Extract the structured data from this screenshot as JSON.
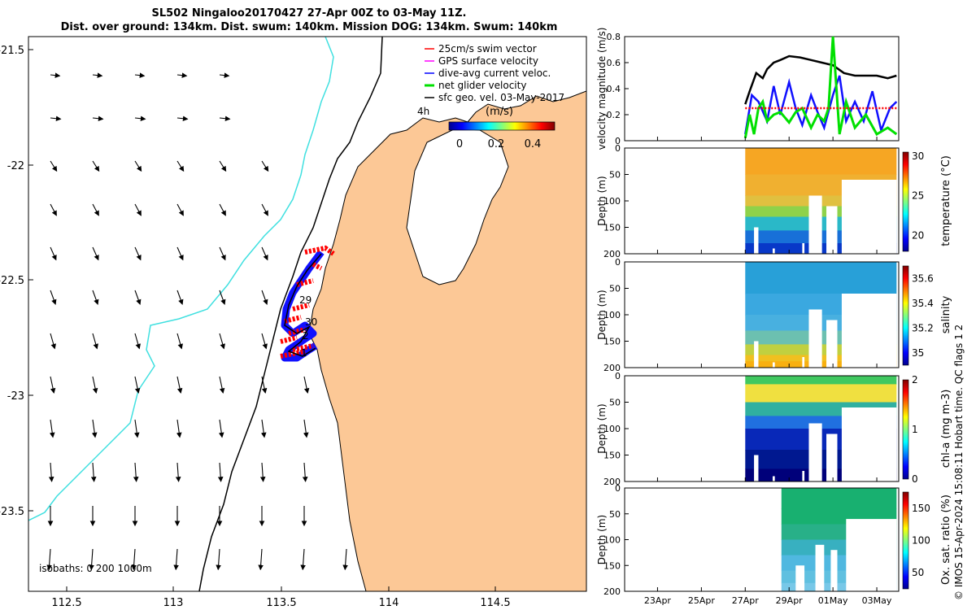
{
  "title_line1": "SL502 Ningaloo20170427 27-Apr 00Z to 03-May 11Z.",
  "title_line2": "Dist. over ground: 134km. Dist. swum: 140km. Mission DOG: 134km. Swum: 140km",
  "footer": "© IMOS 15-Apr-2024 15:08:11 Hobart time. QC flags 1  2",
  "map": {
    "lon_ticks": [
      "112.5",
      "113",
      "113.5",
      "114",
      "114.5"
    ],
    "lat_ticks": [
      "-21.5",
      "-22",
      "-22.5",
      "-23",
      "-23.5"
    ],
    "legend": [
      "25cm/s swim vector",
      "GPS surface velocity",
      "dive-avg current veloc.",
      "net glider velocity",
      "sfc geo. vel. 03-May-2017"
    ],
    "interval_label": "4h",
    "colorbar_label": "(m/s)",
    "colorbar_ticks": [
      "0",
      "0.2",
      "0.4"
    ],
    "day_labels": [
      "29",
      "30",
      "2",
      "1"
    ],
    "isobaths": "isobaths: 0   200  1000m",
    "colors": {
      "land": "#fcc896",
      "isobath200": "#000000",
      "isobath1000": "#40e0e0",
      "swim": "#ff0000",
      "track": "#1010ff"
    }
  },
  "chart_data": [
    {
      "type": "line",
      "ylabel": "velocity magnitude (m/s)",
      "ylim": [
        0,
        0.8
      ],
      "y_ticks": [
        "0",
        "0.2",
        "0.4",
        "0.6",
        "0.8"
      ],
      "series": [
        {
          "color": "#000000",
          "x": [
            27.0,
            27.2,
            27.5,
            27.8,
            28.0,
            28.3,
            28.6,
            29.0,
            29.5,
            30.0,
            30.5,
            31.0,
            31.5,
            32.0,
            32.5,
            33.0,
            33.5,
            33.9
          ],
          "y": [
            0.28,
            0.38,
            0.52,
            0.48,
            0.55,
            0.6,
            0.62,
            0.65,
            0.64,
            0.62,
            0.6,
            0.58,
            0.52,
            0.5,
            0.5,
            0.5,
            0.48,
            0.5
          ]
        },
        {
          "color": "#1010ff",
          "x": [
            27.0,
            27.3,
            27.6,
            28.0,
            28.3,
            28.6,
            29.0,
            29.3,
            29.6,
            30.0,
            30.3,
            30.6,
            31.0,
            31.3,
            31.6,
            32.0,
            32.4,
            32.8,
            33.2,
            33.6,
            33.9
          ],
          "y": [
            0.05,
            0.35,
            0.3,
            0.15,
            0.42,
            0.2,
            0.45,
            0.25,
            0.12,
            0.35,
            0.22,
            0.1,
            0.35,
            0.5,
            0.15,
            0.3,
            0.15,
            0.38,
            0.08,
            0.25,
            0.3
          ]
        },
        {
          "color": "#00e000",
          "x": [
            27.0,
            27.2,
            27.4,
            27.6,
            27.8,
            28.0,
            28.3,
            28.6,
            29.0,
            29.3,
            29.6,
            30.0,
            30.3,
            30.6,
            30.8,
            31.0,
            31.3,
            31.6,
            32.0,
            32.5,
            33.0,
            33.5,
            33.9
          ],
          "y": [
            0.02,
            0.2,
            0.05,
            0.25,
            0.3,
            0.15,
            0.2,
            0.22,
            0.14,
            0.22,
            0.25,
            0.1,
            0.2,
            0.15,
            0.25,
            0.8,
            0.05,
            0.3,
            0.1,
            0.2,
            0.05,
            0.1,
            0.05
          ]
        },
        {
          "color": "#ff0000",
          "x": [
            27.0,
            33.9
          ],
          "y": [
            0.25,
            0.25
          ]
        }
      ]
    },
    {
      "type": "heatmap",
      "ylabel": "Depth (m)",
      "ylim": [
        200,
        0
      ],
      "y_ticks": [
        "0",
        "50",
        "100",
        "150",
        "200"
      ],
      "colorbar_label": "temperature (°C)",
      "colorbar_ticks": [
        "20",
        "25",
        "30"
      ],
      "crange": [
        18,
        30.5
      ]
    },
    {
      "type": "heatmap",
      "ylabel": "Depth (m)",
      "ylim": [
        200,
        0
      ],
      "y_ticks": [
        "0",
        "50",
        "100",
        "150",
        "200"
      ],
      "colorbar_label": "salinity",
      "colorbar_ticks": [
        "35",
        "35.2",
        "35.4",
        "35.6"
      ],
      "crange": [
        34.9,
        35.7
      ]
    },
    {
      "type": "heatmap",
      "ylabel": "Depth (m)",
      "ylim": [
        200,
        0
      ],
      "y_ticks": [
        "0",
        "50",
        "100",
        "150",
        "200"
      ],
      "colorbar_label": "chl-a (mg m-3)",
      "colorbar_ticks": [
        "0",
        "1",
        "2"
      ],
      "crange": [
        0,
        2
      ]
    },
    {
      "type": "heatmap",
      "ylabel": "Depth (m)",
      "ylim": [
        200,
        0
      ],
      "y_ticks": [
        "0",
        "50",
        "100",
        "150",
        "200"
      ],
      "colorbar_label": "Ox. sat. ratio (%)",
      "colorbar_ticks": [
        "50",
        "100",
        "150"
      ],
      "crange": [
        25,
        175
      ]
    }
  ],
  "time_axis": {
    "labels": [
      "23Apr",
      "25Apr",
      "27Apr",
      "29Apr",
      "01May",
      "03May"
    ]
  }
}
